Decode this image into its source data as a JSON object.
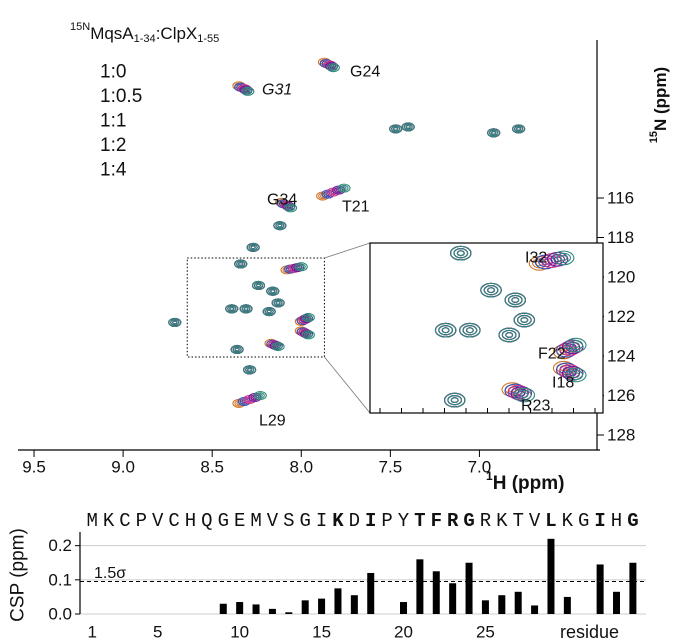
{
  "chart_data": [
    {
      "type": "scatter",
      "title": [
        "15N",
        "MqsA",
        "1-34",
        ":ClpX",
        "1-55"
      ],
      "xlabel": [
        "1",
        "H (ppm)"
      ],
      "ylabel": [
        "15",
        "N (ppm)"
      ],
      "xlim": [
        9.59,
        6.34
      ],
      "ylim": [
        108.0,
        128.76
      ],
      "xticks": [
        9.5,
        {
          "value": 9.0,
          "label": "9.0"
        },
        8.5,
        {
          "value": 8.0,
          "label": "8.0"
        },
        7.5,
        {
          "value": 7.0,
          "label": "7.0"
        }
      ],
      "yticks": [
        116,
        118,
        120,
        122,
        124,
        126,
        128
      ],
      "annotations": [
        "G24",
        "G31",
        "G34",
        "T21",
        "L29"
      ],
      "series": [
        {
          "name": "1:0",
          "color": "#2e8b7a",
          "x": [
            7.82,
            8.3,
            7.47,
            7.4,
            6.92,
            6.78,
            7.76,
            8.06,
            8.12,
            8.27,
            8.0,
            8.34,
            8.24,
            8.16,
            8.13,
            8.39,
            8.31,
            8.18,
            7.96,
            7.96,
            8.13,
            8.36,
            8.29,
            8.23,
            8.71
          ],
          "values": [
            109.4,
            110.6,
            112.5,
            112.4,
            112.7,
            112.5,
            115.5,
            116.5,
            117.4,
            118.5,
            119.48,
            119.34,
            120.43,
            120.72,
            121.31,
            121.61,
            121.61,
            121.75,
            122.05,
            122.93,
            123.52,
            123.67,
            124.7,
            126.0,
            122.3
          ]
        },
        {
          "name": "1:0.5",
          "color": "#6a1b9a",
          "x": [
            7.83,
            8.31,
            7.47,
            7.4,
            6.92,
            6.78,
            7.79,
            8.07,
            8.12,
            8.27,
            8.02,
            8.34,
            8.24,
            8.16,
            8.13,
            8.39,
            8.31,
            8.18,
            7.97,
            7.97,
            8.14,
            8.36,
            8.29,
            8.26,
            8.71
          ],
          "values": [
            109.33,
            110.53,
            112.5,
            112.4,
            112.7,
            112.5,
            115.6,
            116.43,
            117.4,
            118.5,
            119.52,
            119.34,
            120.43,
            120.72,
            121.31,
            121.61,
            121.61,
            121.75,
            122.1,
            122.88,
            123.48,
            123.67,
            124.7,
            126.1,
            122.3
          ]
        },
        {
          "name": "1:1",
          "color": "#d6338a",
          "x": [
            7.84,
            8.32,
            7.47,
            7.4,
            6.92,
            6.78,
            7.82,
            8.08,
            8.12,
            8.27,
            8.04,
            8.34,
            8.24,
            8.16,
            8.13,
            8.39,
            8.31,
            8.18,
            7.98,
            7.98,
            8.15,
            8.36,
            8.29,
            8.29,
            8.71
          ],
          "values": [
            109.26,
            110.46,
            112.5,
            112.4,
            112.7,
            112.5,
            115.7,
            116.36,
            117.4,
            118.5,
            119.56,
            119.34,
            120.43,
            120.72,
            121.31,
            121.61,
            121.61,
            121.75,
            122.15,
            122.83,
            123.44,
            123.67,
            124.7,
            126.2,
            122.3
          ]
        },
        {
          "name": "1:2",
          "color": "#2f4fbf",
          "x": [
            7.86,
            8.34,
            7.47,
            7.4,
            6.92,
            6.78,
            7.85,
            8.1,
            8.12,
            8.27,
            8.06,
            8.34,
            8.24,
            8.16,
            8.13,
            8.39,
            8.31,
            8.18,
            7.99,
            7.99,
            8.16,
            8.36,
            8.29,
            8.32,
            8.71
          ],
          "values": [
            109.19,
            110.39,
            112.5,
            112.4,
            112.7,
            112.5,
            115.8,
            116.29,
            117.4,
            118.5,
            119.6,
            119.34,
            120.43,
            120.72,
            121.31,
            121.61,
            121.61,
            121.75,
            122.2,
            122.78,
            123.4,
            123.67,
            124.7,
            126.3,
            122.3
          ]
        },
        {
          "name": "1:4",
          "color": "#d2762a",
          "x": [
            7.87,
            8.35,
            7.47,
            7.4,
            6.92,
            6.78,
            7.88,
            8.11,
            8.12,
            8.27,
            8.08,
            8.34,
            8.24,
            8.16,
            8.13,
            8.39,
            8.31,
            8.18,
            8.0,
            8.0,
            8.17,
            8.36,
            8.29,
            8.35,
            8.71
          ],
          "values": [
            109.12,
            110.32,
            112.5,
            112.4,
            112.7,
            112.5,
            115.9,
            116.22,
            117.4,
            118.5,
            119.64,
            119.34,
            120.43,
            120.72,
            121.31,
            121.61,
            121.61,
            121.75,
            122.25,
            122.73,
            123.36,
            123.67,
            124.7,
            126.4,
            122.3
          ]
        }
      ]
    },
    {
      "type": "zoom",
      "xlim": [
        8.64,
        7.87
      ],
      "ylim": [
        119.04,
        124.05
      ],
      "annotations": [
        "I32",
        "F22",
        "I18",
        "R23"
      ]
    },
    {
      "type": "bar",
      "ylabel": "CSP (ppm)",
      "xlabel": "residue",
      "color": "#000000",
      "x": [
        1,
        2,
        3,
        4,
        5,
        6,
        7,
        8,
        9,
        10,
        11,
        12,
        13,
        14,
        15,
        16,
        17,
        18,
        19,
        20,
        21,
        22,
        23,
        24,
        25,
        26,
        27,
        28,
        29,
        30,
        31,
        32,
        33,
        34
      ],
      "values": [
        null,
        null,
        null,
        null,
        null,
        null,
        null,
        null,
        0.03,
        0.035,
        0.028,
        0.015,
        0.005,
        0.04,
        0.045,
        0.075,
        0.055,
        0.12,
        null,
        0.035,
        0.16,
        0.125,
        0.09,
        0.15,
        0.04,
        0.055,
        0.065,
        0.025,
        0.22,
        0.05,
        null,
        0.145,
        0.065,
        0.15
      ],
      "sequence": [
        "M",
        "K",
        "C",
        "P",
        "V",
        "C",
        "H",
        "Q",
        "G",
        "E",
        "M",
        "V",
        "S",
        "G",
        "I",
        "K",
        "D",
        "I",
        "P",
        "Y",
        "T",
        "F",
        "R",
        "G",
        "R",
        "K",
        "T",
        "V",
        "L",
        "K",
        "G",
        "I",
        "H",
        "G"
      ],
      "highlights": [
        {
          "residue": 16,
          "color": "#e0a060"
        },
        {
          "residue": 18,
          "color": "#a0521e"
        },
        {
          "residue": 21,
          "color": "#a0521e"
        },
        {
          "residue": 22,
          "color": "#a0521e"
        },
        {
          "residue": 23,
          "color": "#e0a060"
        },
        {
          "residue": 24,
          "color": "#a0521e"
        },
        {
          "residue": 29,
          "color": "#a0521e"
        },
        {
          "residue": 32,
          "color": "#a0521e"
        },
        {
          "residue": 34,
          "color": "#a0521e"
        }
      ],
      "threshold": {
        "value": 0.095,
        "label": "1.5σ"
      },
      "xlim": [
        0.5,
        34.8
      ],
      "ylim": [
        0,
        0.24
      ],
      "xticks": [
        1,
        5,
        10,
        15,
        20,
        25
      ],
      "yticks": [
        {
          "value": 0,
          "label": "0.0"
        },
        0.1,
        0.2
      ],
      "grid": true
    }
  ]
}
